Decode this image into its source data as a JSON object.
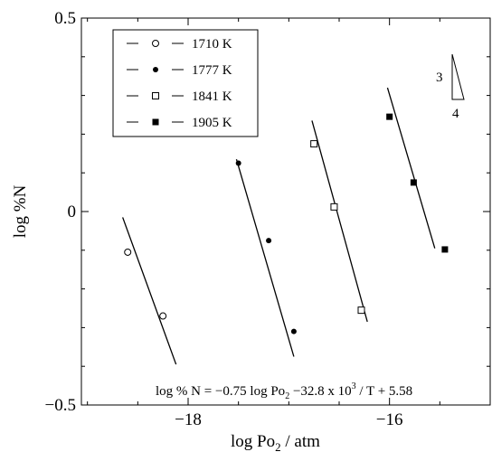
{
  "chart_data": {
    "type": "scatter",
    "xlabel": "log Po",
    "xlabel_sub": "2",
    "xlabel_tail": " / atm",
    "ylabel": "log %N",
    "xlim": [
      -19.06,
      -15.0
    ],
    "ylim": [
      -0.5,
      0.5
    ],
    "x_ticks": [
      -18,
      -16
    ],
    "x_tick_labels": [
      "−18",
      "−16"
    ],
    "y_ticks": [
      -0.5,
      0,
      0.5
    ],
    "y_tick_labels": [
      "−0.5",
      "0",
      "0.5"
    ],
    "legend_position": "top-left",
    "series": [
      {
        "name": "1710 K",
        "marker": "open-circle",
        "points": [
          [
            -18.6,
            -0.105
          ],
          [
            -18.25,
            -0.27
          ]
        ],
        "fit_line": [
          [
            -18.65,
            -0.015
          ],
          [
            -18.12,
            -0.395
          ]
        ]
      },
      {
        "name": "1777 K",
        "marker": "filled-circle",
        "points": [
          [
            -17.5,
            0.125
          ],
          [
            -17.2,
            -0.075
          ],
          [
            -16.95,
            -0.31
          ]
        ],
        "fit_line": [
          [
            -17.52,
            0.135
          ],
          [
            -16.95,
            -0.375
          ]
        ]
      },
      {
        "name": "1841 K",
        "marker": "open-square",
        "points": [
          [
            -16.75,
            0.175
          ],
          [
            -16.55,
            0.012
          ],
          [
            -16.28,
            -0.255
          ]
        ],
        "fit_line": [
          [
            -16.77,
            0.235
          ],
          [
            -16.22,
            -0.285
          ]
        ]
      },
      {
        "name": "1905 K",
        "marker": "filled-square",
        "points": [
          [
            -16.0,
            0.245
          ],
          [
            -15.76,
            0.075
          ],
          [
            -15.45,
            -0.098
          ]
        ],
        "fit_line": [
          [
            -16.02,
            0.32
          ],
          [
            -15.55,
            -0.095
          ]
        ]
      }
    ],
    "annotation": {
      "prefix": "log % N = −0.75 log Po",
      "sub": "2",
      "middle": " −32.8 x 10",
      "sup": "3",
      "suffix": " / T + 5.58"
    },
    "slope_triangle": {
      "rise_label": "3",
      "run_label": "4"
    }
  }
}
